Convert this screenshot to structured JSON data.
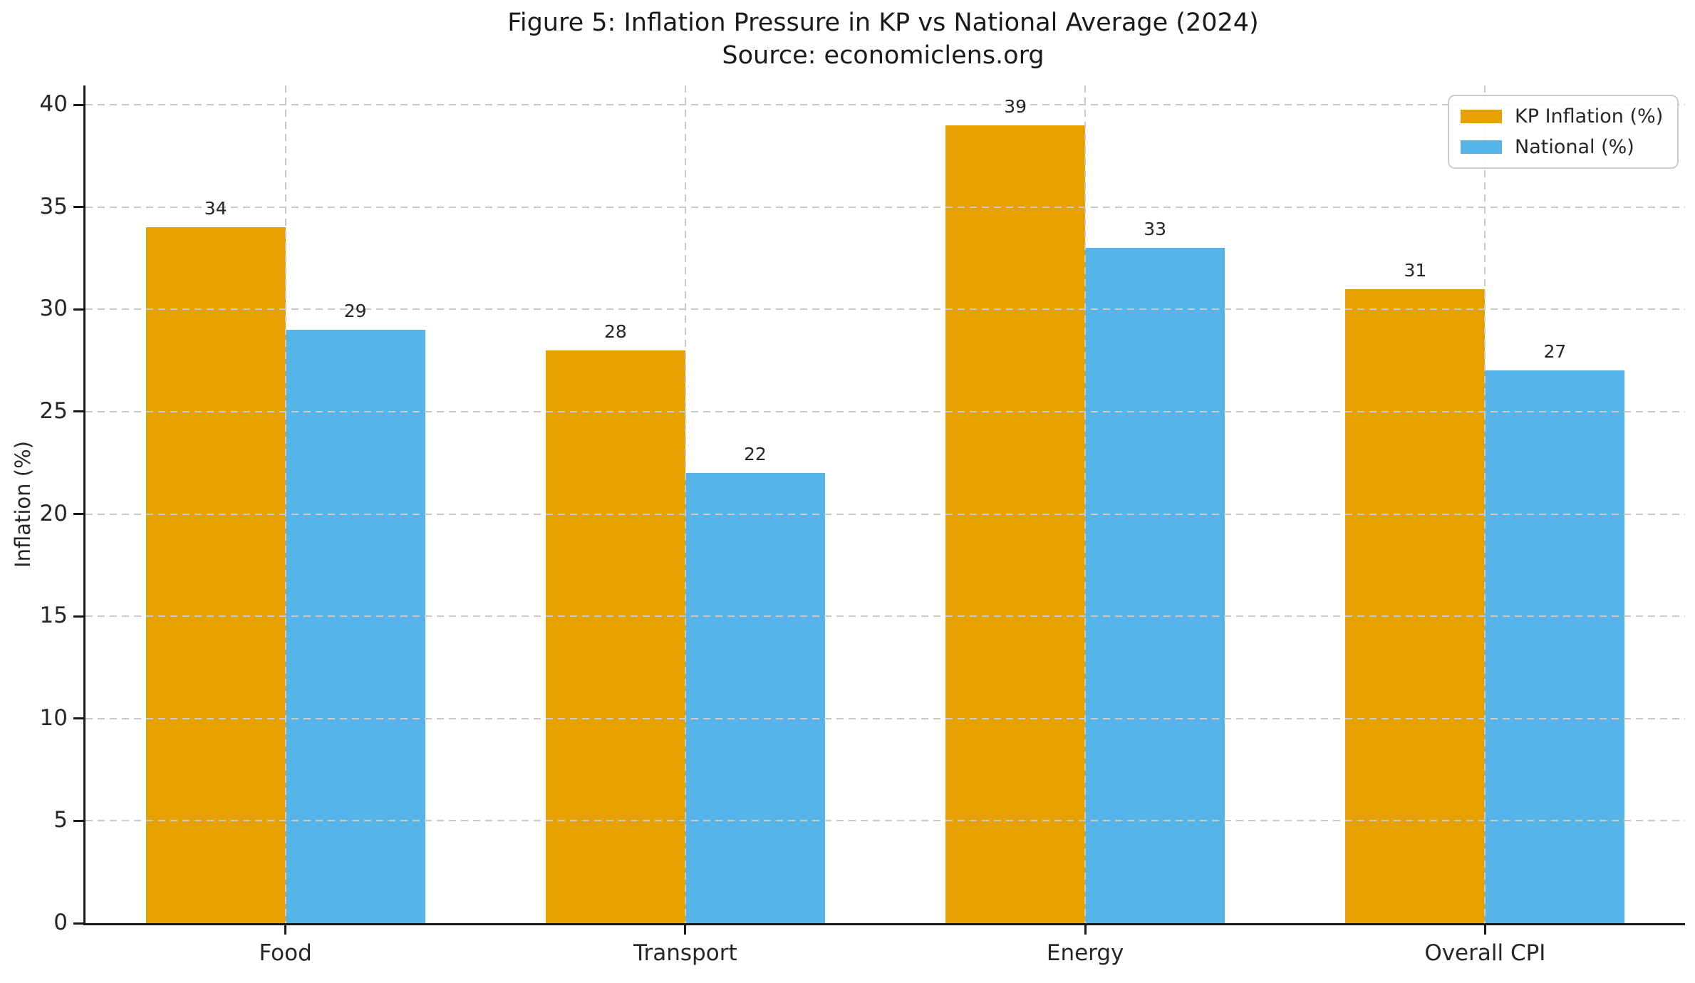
{
  "chart_data": {
    "type": "bar",
    "title": "Figure 5: Inflation Pressure in KP vs National Average (2024)",
    "subtitle": "Source: economiclens.org",
    "categories": [
      "Food",
      "Transport",
      "Energy",
      "Overall CPI"
    ],
    "series": [
      {
        "name": "KP Inflation (%)",
        "color": "#E6A000",
        "values": [
          34,
          28,
          39,
          31
        ]
      },
      {
        "name": "National (%)",
        "color": "#56B4E9",
        "values": [
          29,
          22,
          33,
          27
        ]
      }
    ],
    "xlabel": "",
    "ylabel": "Inflation (%)",
    "ylim": [
      0,
      40
    ],
    "yticks": [
      0,
      5,
      10,
      15,
      20,
      25,
      30,
      35,
      40
    ],
    "value_labels": [
      [
        34,
        28,
        39,
        31
      ],
      [
        29,
        22,
        33,
        27
      ]
    ],
    "grid": "dashed gridlines on both axes, drawn above bars",
    "legend_position": "upper right",
    "legend_entries": [
      "KP Inflation (%)",
      "National (%)"
    ],
    "colors": {
      "kp_bar": "#E6A000",
      "national_bar": "#56B4E9",
      "grid": "#c9c9c9",
      "spine": "#1a1a1a",
      "text": "#262626"
    }
  }
}
